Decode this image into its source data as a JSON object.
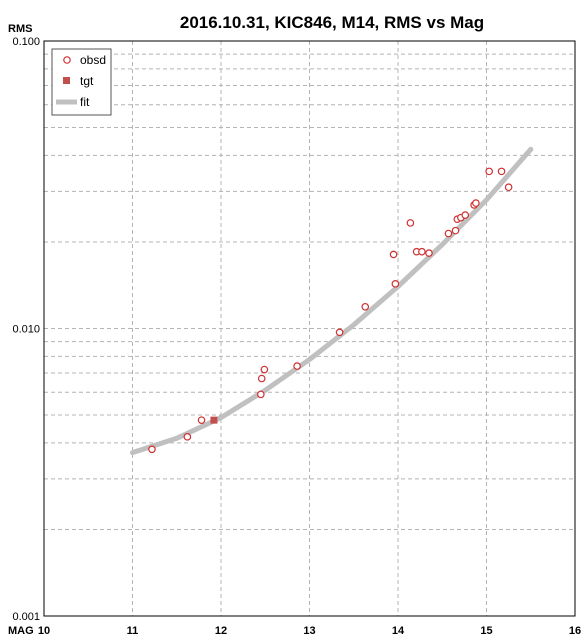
{
  "chart_data": {
    "type": "scatter",
    "title": "2016.10.31, KIC846, M14, RMS vs Mag",
    "xlabel": "MAG",
    "ylabel": "RMS",
    "xlim": [
      10,
      16
    ],
    "ylim": [
      0.001,
      0.1
    ],
    "y_scale": "log",
    "grid": true,
    "legend_position": "top-left",
    "x_ticks": [
      "10",
      "11",
      "12",
      "13",
      "14",
      "15",
      "16"
    ],
    "y_ticks": [
      "0.100",
      "0.010",
      "0.001"
    ],
    "series": [
      {
        "name": "obsd",
        "marker": "open-circle",
        "color": "#d03030",
        "points": [
          [
            11.22,
            0.0038
          ],
          [
            11.62,
            0.0042
          ],
          [
            11.78,
            0.0048
          ],
          [
            12.45,
            0.0059
          ],
          [
            12.46,
            0.0067
          ],
          [
            12.49,
            0.0072
          ],
          [
            12.86,
            0.0074
          ],
          [
            13.34,
            0.0097
          ],
          [
            13.63,
            0.0119
          ],
          [
            13.95,
            0.0181
          ],
          [
            13.97,
            0.0143
          ],
          [
            14.14,
            0.0233
          ],
          [
            14.21,
            0.0185
          ],
          [
            14.27,
            0.0185
          ],
          [
            14.35,
            0.0183
          ],
          [
            14.57,
            0.0214
          ],
          [
            14.65,
            0.0219
          ],
          [
            14.67,
            0.024
          ],
          [
            14.71,
            0.0243
          ],
          [
            14.76,
            0.0248
          ],
          [
            14.86,
            0.0269
          ],
          [
            14.88,
            0.0273
          ],
          [
            15.03,
            0.0352
          ],
          [
            15.17,
            0.0352
          ],
          [
            15.25,
            0.031
          ]
        ]
      },
      {
        "name": "tgt",
        "marker": "filled-square",
        "color": "#c0504d",
        "points": [
          [
            11.92,
            0.0048
          ]
        ]
      },
      {
        "name": "fit",
        "marker": "line",
        "color": "#c0c0c0",
        "points": [
          [
            11.0,
            0.0037
          ],
          [
            11.5,
            0.00415
          ],
          [
            12.0,
            0.0049
          ],
          [
            12.5,
            0.0061
          ],
          [
            13.0,
            0.0078
          ],
          [
            13.5,
            0.0103
          ],
          [
            14.0,
            0.014
          ],
          [
            14.5,
            0.0196
          ],
          [
            15.0,
            0.028
          ],
          [
            15.5,
            0.042
          ]
        ]
      }
    ]
  }
}
